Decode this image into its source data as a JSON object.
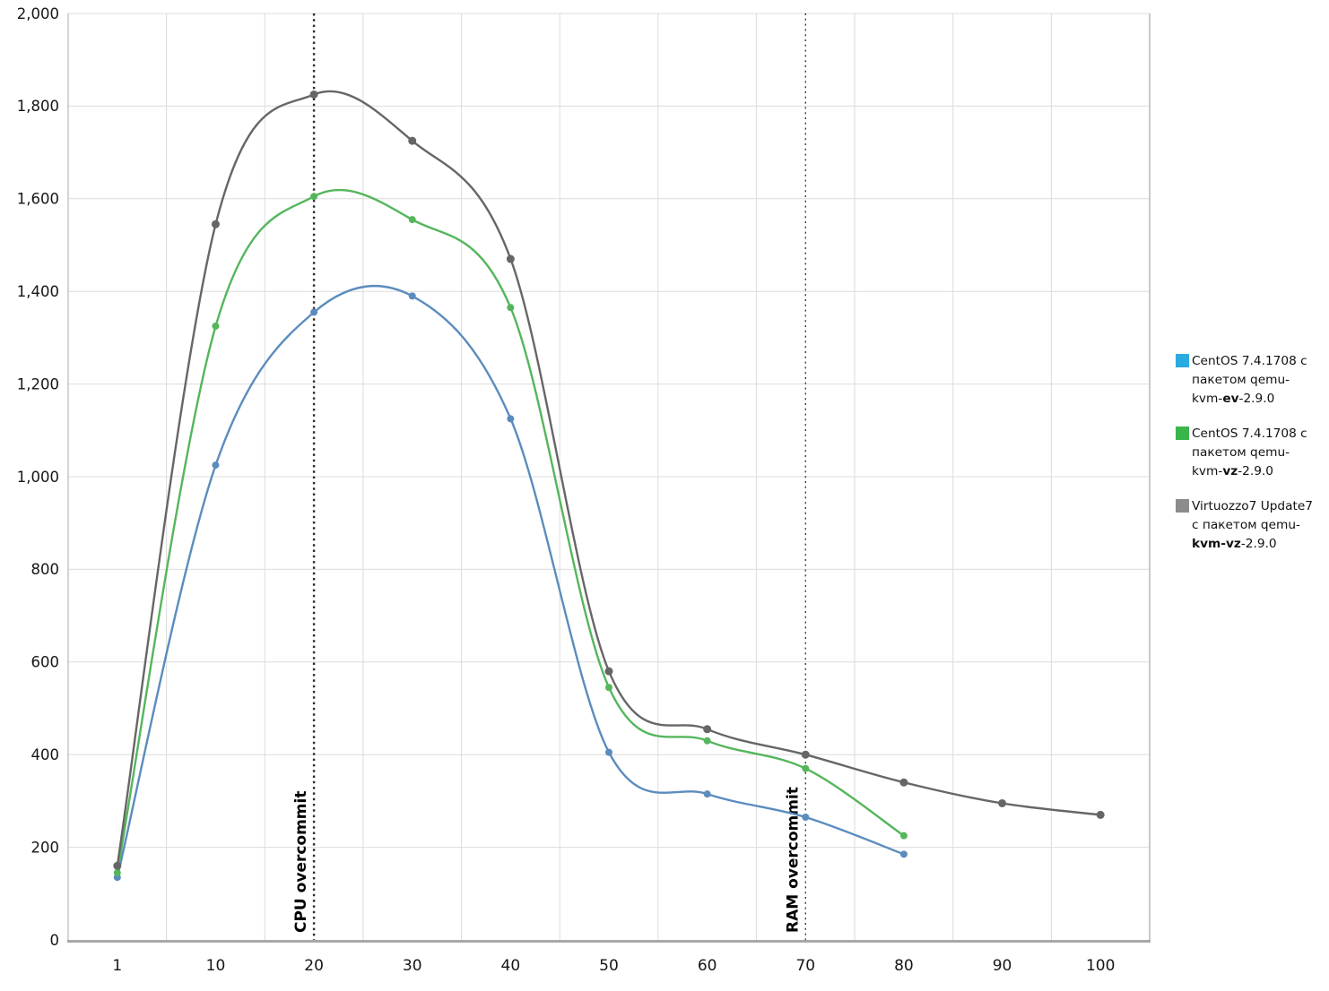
{
  "chart_data": {
    "type": "line",
    "title": "",
    "xlabel": "",
    "ylabel": "",
    "x_categories": [
      "1",
      "10",
      "20",
      "30",
      "40",
      "50",
      "60",
      "70",
      "80",
      "90",
      "100"
    ],
    "ylim": [
      0,
      2000
    ],
    "ytick_step": 200,
    "ytick_labels": [
      "0",
      "200",
      "400",
      "600",
      "800",
      "1,000",
      "1,200",
      "1,400",
      "1,600",
      "1,800",
      "2,000"
    ],
    "grid": true,
    "smooth_lines": true,
    "legend_position": "right",
    "series": [
      {
        "name": "CentOS 7.4.1708 с пакетом qemu-kvm-ev-2.9.0",
        "color": "#5b8cbe",
        "marker": "circle",
        "values": [
          135,
          1025,
          1355,
          1390,
          1125,
          405,
          315,
          265,
          185,
          null,
          null
        ]
      },
      {
        "name": "CentOS 7.4.1708 с пакетом qemu-kvm-vz-2.9.0",
        "color": "#54b65c",
        "marker": "circle",
        "values": [
          145,
          1325,
          1605,
          1555,
          1365,
          545,
          430,
          370,
          225,
          null,
          null
        ]
      },
      {
        "name": "Virtuozzo7 Update7 с пакетом qemu-kvm-vz-2.9.0",
        "color": "#666666",
        "marker": "circle",
        "values": [
          160,
          1545,
          1825,
          1725,
          1470,
          580,
          455,
          400,
          340,
          295,
          270
        ]
      }
    ],
    "annotations": [
      {
        "label": "CPU overcommit",
        "x_category": "20",
        "line_style": "dotted-bold"
      },
      {
        "label": "RAM overcommit",
        "x_category": "70",
        "line_style": "dotted-thin"
      }
    ]
  },
  "legend": {
    "items": [
      {
        "swatch_color": "#29abe2",
        "text_prefix": "CentOS 7.4.1708 с пакетом qemu-kvm-",
        "text_bold": "ev",
        "text_suffix": "-2.9.0"
      },
      {
        "swatch_color": "#3ab54a",
        "text_prefix": "CentOS 7.4.1708 с пакетом qemu-kvm-",
        "text_bold": "vz",
        "text_suffix": "-2.9.0"
      },
      {
        "swatch_color": "#8c8c8c",
        "text_prefix": "Virtuozzo7 Update7 с пакетом qemu-",
        "text_bold": "kvm-vz",
        "text_suffix": "-2.9.0"
      }
    ]
  },
  "colors": {
    "gridline": "#dcdcdc",
    "axis_bottom": "#a8a8a8",
    "axis_left": "#c6c6c6",
    "plot_right_border": "#c9c9c9",
    "tick_label": "#161616",
    "annotation_line": "#2b2b2b",
    "annotation_text": "#000000"
  }
}
